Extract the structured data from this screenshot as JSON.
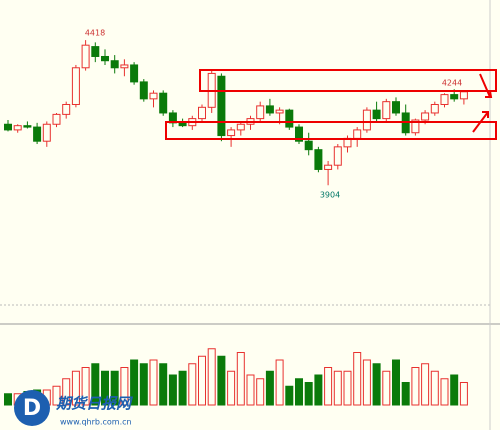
{
  "chart_data": {
    "type": "candlestick",
    "open": [
      4120,
      4100,
      4115,
      4110,
      4060,
      4120,
      4155,
      4190,
      4320,
      4395,
      4360,
      4345,
      4320,
      4330,
      4270,
      4210,
      4230,
      4160,
      4125,
      4115,
      4140,
      4180,
      4290,
      4080,
      4100,
      4120,
      4140,
      4185,
      4160,
      4170,
      4110,
      4060,
      4030,
      3960,
      3975,
      4040,
      4070,
      4100,
      4170,
      4140,
      4200,
      4160,
      4090,
      4135,
      4160,
      4190,
      4225,
      4210
    ],
    "high": [
      4135,
      4120,
      4130,
      4125,
      4130,
      4160,
      4200,
      4330,
      4418,
      4410,
      4385,
      4365,
      4350,
      4340,
      4280,
      4240,
      4240,
      4170,
      4140,
      4150,
      4190,
      4310,
      4300,
      4110,
      4130,
      4150,
      4200,
      4210,
      4180,
      4175,
      4120,
      4090,
      4040,
      3990,
      4050,
      4080,
      4110,
      4180,
      4200,
      4210,
      4215,
      4190,
      4140,
      4170,
      4200,
      4230,
      4244,
      4240
    ],
    "low": [
      4095,
      4090,
      4105,
      4050,
      4040,
      4110,
      4140,
      4180,
      4310,
      4340,
      4330,
      4300,
      4290,
      4260,
      4200,
      4180,
      4150,
      4110,
      4110,
      4100,
      4130,
      4160,
      4060,
      4040,
      4080,
      4100,
      4130,
      4150,
      4120,
      4100,
      4050,
      4010,
      3950,
      3904,
      3960,
      4020,
      4040,
      4090,
      4130,
      4130,
      4150,
      4080,
      4080,
      4120,
      4150,
      4180,
      4200,
      4190
    ],
    "close": [
      4100,
      4115,
      4110,
      4060,
      4120,
      4155,
      4190,
      4320,
      4400,
      4360,
      4345,
      4320,
      4330,
      4270,
      4210,
      4230,
      4160,
      4125,
      4115,
      4140,
      4180,
      4300,
      4080,
      4100,
      4120,
      4140,
      4185,
      4160,
      4170,
      4110,
      4060,
      4030,
      3960,
      3975,
      4040,
      4070,
      4100,
      4170,
      4140,
      4200,
      4160,
      4090,
      4135,
      4160,
      4190,
      4225,
      4210,
      4235
    ],
    "volume": [
      15,
      15,
      18,
      20,
      20,
      25,
      35,
      45,
      50,
      55,
      45,
      45,
      50,
      60,
      55,
      60,
      55,
      40,
      45,
      55,
      65,
      75,
      65,
      45,
      70,
      40,
      35,
      45,
      60,
      25,
      35,
      30,
      40,
      50,
      45,
      45,
      70,
      60,
      55,
      45,
      60,
      30,
      50,
      55,
      45,
      35,
      40,
      30
    ],
    "up_color": "#e8312f",
    "down_color": "#0a7a0a",
    "ylim": [
      3480,
      4560
    ],
    "volume_lim": [
      0,
      100
    ],
    "annotations": [
      "4418",
      "4244",
      "3904"
    ],
    "watermark": {
      "name": "期货日报网",
      "url": "www.qhrb.com.cn"
    }
  }
}
